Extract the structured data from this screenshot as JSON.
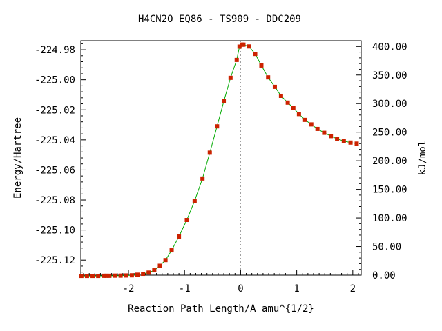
{
  "chart_data": {
    "type": "line",
    "title": "H4CN2O   EQ86 - TS909 - DDC209",
    "xlabel": "Reaction Path Length/A amu^{1/2}",
    "ylabel": "Energy/Hartree",
    "y2label": "kJ/mol",
    "xlim": [
      -2.85,
      2.15
    ],
    "ylim": [
      -225.13,
      -224.974
    ],
    "y2lim": [
      0.0,
      410.0
    ],
    "x_ticks": [
      -2,
      -1,
      0,
      1,
      2
    ],
    "x_tick_labels": [
      "-2",
      "-1",
      "0",
      "1",
      "2"
    ],
    "y_ticks": [
      -224.98,
      -225.0,
      -225.02,
      -225.04,
      -225.06,
      -225.08,
      -225.1,
      -225.12
    ],
    "y_tick_labels": [
      "-224.98",
      "-225.00",
      "-225.02",
      "-225.04",
      "-225.06",
      "-225.08",
      "-225.10",
      "-225.12"
    ],
    "y2_ticks": [
      400,
      350,
      300,
      250,
      200,
      150,
      100,
      50,
      0
    ],
    "y2_tick_labels": [
      "400.00",
      "350.00",
      "300.00",
      "250.00",
      "200.00",
      "150.00",
      "100.00",
      "50.00",
      "0.00"
    ],
    "ts_x": 0,
    "line_color": "#00aa00",
    "marker_color": "#cc2200",
    "grid": false,
    "series": [
      {
        "x": [
          -2.84,
          -2.74,
          -2.64,
          -2.54,
          -2.44,
          -2.39,
          -2.34,
          -2.24,
          -2.14,
          -2.04,
          -1.94,
          -1.84,
          -1.74,
          -1.64,
          -1.54,
          -1.44,
          -1.34,
          -1.23,
          -1.1,
          -0.96,
          -0.82,
          -0.68,
          -0.55,
          -0.42,
          -0.3,
          -0.18,
          -0.07,
          -0.02,
          0.02,
          0.05,
          0.15,
          0.26,
          0.37,
          0.49,
          0.61,
          0.72,
          0.84,
          0.94,
          1.04,
          1.15,
          1.26,
          1.37,
          1.49,
          1.61,
          1.72,
          1.84,
          1.96,
          2.07
        ],
        "y": [
          -225.1305,
          -225.1305,
          -225.1305,
          -225.1305,
          -225.1304,
          -225.1304,
          -225.1304,
          -225.1303,
          -225.1303,
          -225.1302,
          -225.1301,
          -225.1297,
          -225.1291,
          -225.1283,
          -225.1268,
          -225.1238,
          -225.12,
          -225.1135,
          -225.1043,
          -225.0933,
          -225.0806,
          -225.0657,
          -225.0485,
          -225.031,
          -225.0143,
          -224.9987,
          -224.9868,
          -224.9779,
          -224.9766,
          -224.9766,
          -224.9778,
          -224.9828,
          -224.9905,
          -224.9984,
          -225.0047,
          -225.0107,
          -225.0152,
          -225.0187,
          -225.0228,
          -225.0267,
          -225.0297,
          -225.0327,
          -225.0353,
          -225.0375,
          -225.0393,
          -225.0408,
          -225.0418,
          -225.0425
        ]
      }
    ]
  }
}
